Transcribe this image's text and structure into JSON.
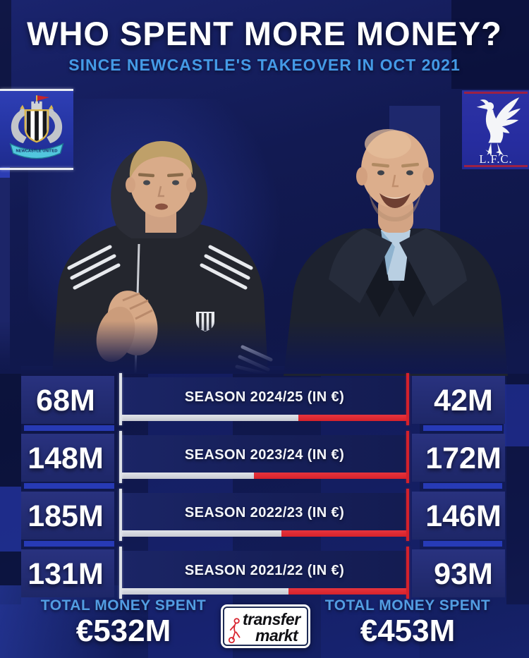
{
  "header": {
    "title": "WHO SPENT MORE MONEY?",
    "subtitle": "SINCE NEWCASTLE'S TAKEOVER IN OCT 2021"
  },
  "teams": {
    "left": {
      "name": "Newcastle United",
      "badge_text": "NEWCASTLE UNITED"
    },
    "right": {
      "name": "Liverpool FC",
      "badge_text": "L.F.C."
    }
  },
  "chart_data": {
    "type": "bar",
    "title": "WHO SPENT MORE MONEY?",
    "subtitle": "SINCE NEWCASTLE'S TAKEOVER IN OCT 2021",
    "categories": [
      "SEASON 2024/25 (IN €)",
      "SEASON 2023/24 (IN €)",
      "SEASON 2022/23 (IN €)",
      "SEASON 2021/22 (IN €)"
    ],
    "series": [
      {
        "name": "Newcastle United",
        "values": [
          68,
          148,
          185,
          131
        ],
        "unit": "M€",
        "color": "#c6c9d1"
      },
      {
        "name": "Liverpool",
        "values": [
          42,
          172,
          146,
          93
        ],
        "unit": "M€",
        "color": "#d6222b"
      }
    ],
    "totals": {
      "newcastle": 532,
      "liverpool": 453,
      "currency": "EUR"
    },
    "layout": "paired horizontal proportion bars, Newcastle grey from left vs Liverpool red from right"
  },
  "rows": [
    {
      "left": "68M",
      "label": "SEASON 2024/25 (IN €)",
      "right": "42M"
    },
    {
      "left": "148M",
      "label": "SEASON 2023/24 (IN €)",
      "right": "172M"
    },
    {
      "left": "185M",
      "label": "SEASON 2022/23 (IN €)",
      "right": "146M"
    },
    {
      "left": "131M",
      "label": "SEASON 2021/22 (IN €)",
      "right": "93M"
    }
  ],
  "footer": {
    "total_label_left": "TOTAL MONEY SPENT",
    "total_value_left": "€532M",
    "total_label_right": "TOTAL MONEY SPENT",
    "total_value_right": "€453M",
    "logo_word_top": "transfer",
    "logo_word_bottom": "markt"
  },
  "colors": {
    "background_navy": "#121a52",
    "accent_blue": "#2c41c8",
    "subtitle_blue": "#449ae6",
    "newcastle_grey": "#c6c9d1",
    "liverpool_red": "#d6222b",
    "badge_blue": "#2a35a8",
    "white": "#ffffff"
  }
}
